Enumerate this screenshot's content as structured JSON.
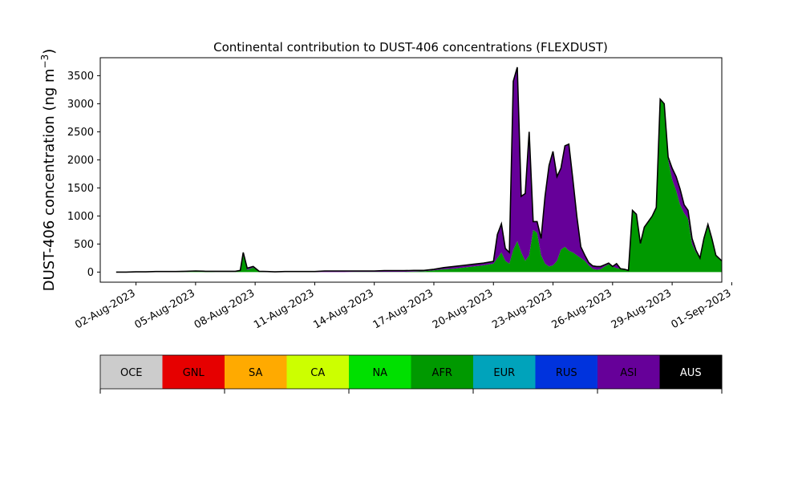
{
  "chart_data": {
    "type": "area",
    "title": "Continental contribution to DUST-406 concentrations (FLEXDUST)",
    "ylabel": "DUST-406 concentration (ng m",
    "ylabel_sup": "−3",
    "ylabel_close": ")",
    "ylim": [
      -180,
      3820
    ],
    "yticks": [
      0,
      500,
      1000,
      1500,
      2000,
      2500,
      3000,
      3500
    ],
    "xlim": [
      -0.8,
      30.5
    ],
    "xticks": [
      {
        "x": 1,
        "label": "02-Aug-2023"
      },
      {
        "x": 4,
        "label": "05-Aug-2023"
      },
      {
        "x": 7,
        "label": "08-Aug-2023"
      },
      {
        "x": 10,
        "label": "11-Aug-2023"
      },
      {
        "x": 13,
        "label": "14-Aug-2023"
      },
      {
        "x": 16,
        "label": "17-Aug-2023"
      },
      {
        "x": 19,
        "label": "20-Aug-2023"
      },
      {
        "x": 22,
        "label": "23-Aug-2023"
      },
      {
        "x": 25,
        "label": "26-Aug-2023"
      },
      {
        "x": 28,
        "label": "29-Aug-2023"
      },
      {
        "x": 31,
        "label": "01-Sep-2023"
      }
    ],
    "grid": false,
    "stacked": true,
    "x": [
      0,
      0.5,
      1,
      1.5,
      2,
      2.5,
      3,
      3.5,
      4,
      4.5,
      5,
      5.5,
      6,
      6.25,
      6.4,
      6.6,
      6.9,
      7.2,
      7.6,
      8,
      8.5,
      9,
      9.5,
      10,
      10.5,
      11,
      11.5,
      12,
      12.5,
      13,
      13.5,
      14,
      14.5,
      15,
      15.5,
      16,
      16.5,
      17,
      17.5,
      18,
      18.5,
      19,
      19.2,
      19.4,
      19.6,
      19.8,
      20,
      20.2,
      20.4,
      20.6,
      20.8,
      21,
      21.2,
      21.4,
      21.6,
      21.8,
      22,
      22.2,
      22.4,
      22.6,
      22.8,
      23,
      23.2,
      23.4,
      23.6,
      23.8,
      24,
      24.2,
      24.4,
      24.6,
      24.8,
      25,
      25.2,
      25.4,
      25.6,
      25.8,
      26,
      26.2,
      26.4,
      26.6,
      26.8,
      27,
      27.2,
      27.4,
      27.6,
      27.8,
      28,
      28.2,
      28.4,
      28.6,
      28.8,
      29,
      29.2,
      29.4,
      29.6,
      29.8,
      30,
      30.2,
      30.5
    ],
    "series": [
      {
        "name": "OCE",
        "color": "#cccccc",
        "values": [
          0,
          0,
          0,
          0,
          0,
          0,
          0,
          0,
          0,
          0,
          0,
          0,
          0,
          0,
          0,
          0,
          0,
          0,
          0,
          0,
          0,
          0,
          0,
          0,
          0,
          0,
          0,
          0,
          0,
          0,
          0,
          0,
          0,
          0,
          0,
          0,
          0,
          0,
          0,
          0,
          0,
          0,
          0,
          0,
          0,
          0,
          0,
          0,
          0,
          0,
          0,
          0,
          0,
          0,
          0,
          0,
          0,
          0,
          0,
          0,
          0,
          0,
          0,
          0,
          0,
          0,
          0,
          0,
          0,
          0,
          0,
          0,
          0,
          0,
          0,
          0,
          0,
          0,
          0,
          0,
          0,
          0,
          0,
          0,
          0,
          0,
          0,
          0,
          0,
          0,
          0,
          0,
          0,
          0,
          0,
          0,
          0,
          0,
          0
        ]
      },
      {
        "name": "GNL",
        "color": "#e60000",
        "values": [
          0,
          0,
          0,
          0,
          0,
          0,
          0,
          0,
          0,
          0,
          0,
          0,
          0,
          0,
          0,
          0,
          0,
          0,
          0,
          0,
          0,
          0,
          0,
          0,
          0,
          0,
          0,
          0,
          0,
          0,
          0,
          0,
          0,
          0,
          0,
          0,
          0,
          0,
          0,
          0,
          0,
          0,
          0,
          0,
          0,
          0,
          0,
          0,
          0,
          0,
          0,
          0,
          0,
          0,
          0,
          0,
          0,
          0,
          0,
          0,
          0,
          0,
          0,
          0,
          0,
          0,
          0,
          0,
          0,
          0,
          0,
          0,
          0,
          0,
          0,
          0,
          0,
          0,
          0,
          0,
          0,
          0,
          0,
          0,
          0,
          0,
          0,
          0,
          0,
          0,
          0,
          0,
          0,
          0,
          0,
          0,
          0,
          0,
          0
        ]
      },
      {
        "name": "SA",
        "color": "#ffaa00",
        "values": [
          0,
          0,
          0,
          0,
          0,
          0,
          0,
          0,
          0,
          0,
          0,
          0,
          0,
          0,
          0,
          0,
          0,
          0,
          0,
          0,
          0,
          0,
          0,
          0,
          0,
          0,
          0,
          0,
          0,
          0,
          0,
          0,
          0,
          0,
          0,
          0,
          0,
          0,
          0,
          0,
          0,
          0,
          0,
          0,
          0,
          0,
          0,
          0,
          0,
          0,
          0,
          0,
          0,
          0,
          0,
          0,
          0,
          0,
          0,
          0,
          0,
          0,
          0,
          0,
          0,
          0,
          0,
          0,
          0,
          0,
          0,
          0,
          0,
          0,
          0,
          0,
          0,
          0,
          0,
          0,
          0,
          0,
          0,
          0,
          0,
          0,
          0,
          0,
          0,
          0,
          0,
          0,
          0,
          0,
          0,
          0,
          0,
          0,
          0
        ]
      },
      {
        "name": "CA",
        "color": "#ccff00",
        "values": [
          0,
          0,
          0,
          0,
          0,
          0,
          0,
          0,
          0,
          0,
          0,
          0,
          0,
          0,
          0,
          0,
          0,
          0,
          0,
          0,
          0,
          0,
          0,
          0,
          0,
          0,
          0,
          0,
          0,
          0,
          0,
          0,
          0,
          0,
          0,
          0,
          0,
          0,
          0,
          0,
          0,
          0,
          0,
          0,
          0,
          0,
          0,
          0,
          0,
          0,
          0,
          0,
          0,
          0,
          0,
          0,
          0,
          0,
          0,
          0,
          0,
          0,
          0,
          0,
          0,
          0,
          0,
          0,
          0,
          0,
          0,
          0,
          0,
          0,
          0,
          0,
          0,
          0,
          0,
          0,
          0,
          0,
          0,
          0,
          0,
          0,
          0,
          0,
          0,
          0,
          0,
          0,
          0,
          0,
          0,
          0,
          0,
          0,
          0
        ]
      },
      {
        "name": "NA",
        "color": "#00e000",
        "values": [
          0,
          0,
          0,
          0,
          0,
          0,
          0,
          0,
          0,
          0,
          0,
          0,
          0,
          0,
          0,
          0,
          0,
          0,
          0,
          0,
          0,
          0,
          0,
          0,
          0,
          0,
          0,
          0,
          0,
          0,
          0,
          0,
          0,
          0,
          0,
          0,
          0,
          0,
          0,
          0,
          0,
          0,
          0,
          0,
          0,
          0,
          0,
          0,
          0,
          0,
          0,
          0,
          0,
          0,
          0,
          0,
          0,
          0,
          0,
          0,
          0,
          0,
          0,
          0,
          0,
          0,
          0,
          0,
          0,
          0,
          0,
          0,
          0,
          0,
          0,
          0,
          0,
          0,
          0,
          0,
          0,
          0,
          0,
          0,
          0,
          0,
          0,
          0,
          0,
          0,
          0,
          0,
          0,
          0,
          0,
          0,
          0,
          0,
          0
        ]
      },
      {
        "name": "AFR",
        "color": "#009900",
        "values": [
          0,
          0,
          5,
          5,
          5,
          5,
          10,
          5,
          15,
          10,
          5,
          5,
          5,
          30,
          300,
          40,
          80,
          10,
          0,
          5,
          0,
          0,
          0,
          0,
          0,
          0,
          0,
          5,
          5,
          5,
          5,
          5,
          5,
          10,
          15,
          30,
          50,
          60,
          80,
          100,
          120,
          150,
          250,
          350,
          200,
          150,
          400,
          550,
          350,
          200,
          300,
          750,
          700,
          300,
          150,
          100,
          120,
          200,
          400,
          450,
          380,
          350,
          300,
          250,
          200,
          120,
          60,
          40,
          50,
          100,
          140,
          100,
          70,
          60,
          50,
          30,
          1100,
          1000,
          500,
          800,
          900,
          1000,
          1150,
          3080,
          3000,
          2000,
          1650,
          1450,
          1200,
          1050,
          950,
          500,
          350,
          250,
          600,
          850,
          600,
          300,
          200
        ]
      },
      {
        "name": "EUR",
        "color": "#00a3bb",
        "values": [
          0,
          0,
          0,
          0,
          0,
          0,
          0,
          0,
          0,
          0,
          0,
          0,
          0,
          0,
          0,
          0,
          0,
          0,
          0,
          0,
          0,
          0,
          0,
          0,
          0,
          0,
          0,
          0,
          0,
          0,
          0,
          0,
          0,
          0,
          0,
          0,
          0,
          0,
          0,
          0,
          0,
          0,
          0,
          0,
          0,
          0,
          0,
          0,
          0,
          0,
          0,
          0,
          0,
          0,
          0,
          0,
          0,
          0,
          0,
          0,
          0,
          0,
          0,
          0,
          0,
          0,
          0,
          0,
          0,
          0,
          0,
          0,
          0,
          0,
          0,
          0,
          0,
          0,
          0,
          0,
          0,
          0,
          0,
          0,
          0,
          0,
          0,
          0,
          0,
          0,
          0,
          0,
          0,
          0,
          0,
          0,
          0,
          0,
          0
        ]
      },
      {
        "name": "RUS",
        "color": "#0033dd",
        "values": [
          0,
          0,
          0,
          0,
          0,
          0,
          0,
          0,
          0,
          0,
          0,
          0,
          0,
          0,
          0,
          0,
          0,
          0,
          0,
          0,
          0,
          0,
          0,
          0,
          0,
          0,
          0,
          0,
          0,
          0,
          0,
          0,
          0,
          0,
          0,
          0,
          0,
          0,
          0,
          0,
          0,
          0,
          0,
          0,
          0,
          0,
          0,
          0,
          0,
          0,
          0,
          0,
          0,
          0,
          0,
          0,
          0,
          0,
          0,
          0,
          0,
          0,
          0,
          0,
          0,
          0,
          0,
          0,
          0,
          0,
          0,
          0,
          0,
          0,
          0,
          0,
          0,
          0,
          0,
          0,
          0,
          0,
          0,
          0,
          0,
          0,
          0,
          0,
          0,
          0,
          0,
          0,
          0,
          0,
          0,
          0,
          0,
          0,
          0
        ]
      },
      {
        "name": "ASI",
        "color": "#660099",
        "values": [
          0,
          0,
          0,
          0,
          5,
          5,
          0,
          10,
          5,
          5,
          10,
          10,
          10,
          0,
          50,
          30,
          20,
          5,
          10,
          0,
          10,
          10,
          10,
          10,
          20,
          20,
          20,
          15,
          15,
          15,
          20,
          20,
          20,
          20,
          15,
          20,
          30,
          40,
          40,
          40,
          40,
          40,
          420,
          510,
          220,
          200,
          3000,
          3100,
          1000,
          1200,
          2200,
          150,
          200,
          300,
          1200,
          1800,
          2030,
          1500,
          1450,
          1800,
          1900,
          1300,
          700,
          200,
          100,
          50,
          50,
          60,
          50,
          30,
          20,
          0,
          80,
          0,
          0,
          0,
          0,
          30,
          10,
          0,
          0,
          0,
          0,
          0,
          0,
          50,
          200,
          250,
          280,
          150,
          150,
          100,
          40,
          0,
          0,
          0,
          0,
          0,
          0
        ]
      },
      {
        "name": "AUS",
        "color": "#000000",
        "values": [
          0,
          0,
          0,
          0,
          0,
          0,
          0,
          0,
          0,
          0,
          0,
          0,
          0,
          0,
          0,
          0,
          0,
          0,
          0,
          0,
          0,
          0,
          0,
          0,
          0,
          0,
          0,
          0,
          0,
          0,
          0,
          0,
          0,
          0,
          0,
          0,
          0,
          0,
          0,
          0,
          0,
          0,
          0,
          0,
          0,
          0,
          0,
          0,
          0,
          0,
          0,
          0,
          0,
          0,
          0,
          0,
          0,
          0,
          0,
          0,
          0,
          0,
          0,
          0,
          0,
          0,
          0,
          0,
          0,
          0,
          0,
          0,
          0,
          0,
          0,
          0,
          0,
          0,
          0,
          0,
          0,
          0,
          0,
          0,
          0,
          0,
          0,
          0,
          0,
          0,
          0,
          0,
          0,
          0,
          0,
          0,
          0,
          0,
          0
        ]
      }
    ],
    "legend": {
      "placement": "bottom",
      "entries": [
        {
          "name": "OCE",
          "color": "#cccccc",
          "text_color": "#000000"
        },
        {
          "name": "GNL",
          "color": "#e60000",
          "text_color": "#000000"
        },
        {
          "name": "SA",
          "color": "#ffaa00",
          "text_color": "#000000"
        },
        {
          "name": "CA",
          "color": "#ccff00",
          "text_color": "#000000"
        },
        {
          "name": "NA",
          "color": "#00e000",
          "text_color": "#000000"
        },
        {
          "name": "AFR",
          "color": "#009900",
          "text_color": "#000000"
        },
        {
          "name": "EUR",
          "color": "#00a3bb",
          "text_color": "#000000"
        },
        {
          "name": "RUS",
          "color": "#0033dd",
          "text_color": "#000000"
        },
        {
          "name": "ASI",
          "color": "#660099",
          "text_color": "#000000"
        },
        {
          "name": "AUS",
          "color": "#000000",
          "text_color": "#ffffff"
        }
      ]
    }
  }
}
